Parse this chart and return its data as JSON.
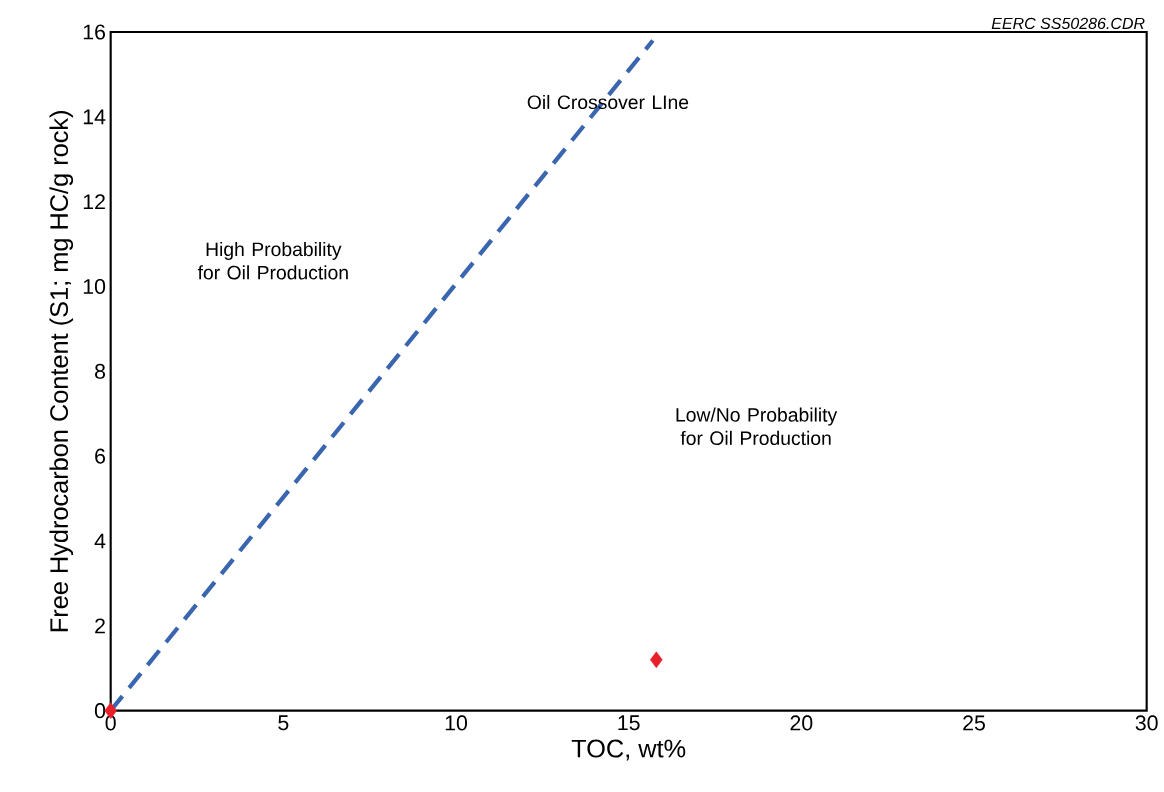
{
  "chart_data": {
    "type": "scatter",
    "xlabel": "TOC, wt%",
    "ylabel": "Free Hydrocarbon Content (S1; mg HC/g rock)",
    "xlim": [
      0,
      30
    ],
    "ylim": [
      0,
      16
    ],
    "xticks": [
      0,
      5,
      10,
      15,
      20,
      25,
      30
    ],
    "yticks": [
      0,
      2,
      4,
      6,
      8,
      10,
      12,
      14,
      16
    ],
    "grid": false,
    "series": [
      {
        "type": "line",
        "color": "#3a66b0",
        "line_style": "dashed",
        "marker": "none",
        "x": [
          0,
          15.7
        ],
        "values": [
          0,
          15.8
        ]
      },
      {
        "color": "#e8202a",
        "marker": "diamond",
        "x": [
          0,
          15.8
        ],
        "values": [
          0,
          1.2
        ]
      }
    ],
    "annotations": [
      {
        "text": "Oil Crossover LIne",
        "x": 14.4,
        "y": 14.35
      },
      "High Probability for Oil Production",
      "Low/No Probability for Oil Production",
      "EERC SS50286.CDR"
    ]
  }
}
